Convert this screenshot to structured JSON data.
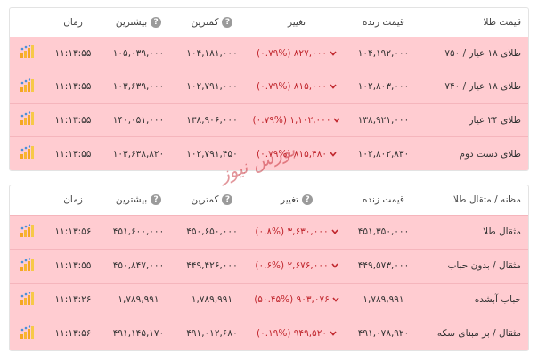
{
  "tables": [
    {
      "header": [
        "قیمت طلا",
        "قیمت زنده",
        "تغییر",
        "کمترین",
        "بیشترین",
        "زمان"
      ],
      "rows": [
        {
          "name": "طلای ۱۸ عیار / ۷۵۰",
          "live": "۱۰۴,۱۹۲,۰۰۰",
          "change": "۸۲۷,۰۰۰",
          "percent": "(۰.۷۹%)",
          "low": "۱۰۴,۱۸۱,۰۰۰",
          "high": "۱۰۵,۰۳۹,۰۰۰",
          "time": "۱۱:۱۳:۵۵"
        },
        {
          "name": "طلای ۱۸ عیار / ۷۴۰",
          "live": "۱۰۲,۸۰۳,۰۰۰",
          "change": "۸۱۵,۰۰۰",
          "percent": "(۰.۷۹%)",
          "low": "۱۰۲,۷۹۱,۰۰۰",
          "high": "۱۰۳,۶۳۹,۰۰۰",
          "time": "۱۱:۱۳:۵۵"
        },
        {
          "name": "طلای ۲۴ عیار",
          "live": "۱۳۸,۹۲۱,۰۰۰",
          "change": "۱,۱۰۲,۰۰۰",
          "percent": "(۰.۷۹%)",
          "low": "۱۳۸,۹۰۶,۰۰۰",
          "high": "۱۴۰,۰۵۱,۰۰۰",
          "time": "۱۱:۱۳:۵۵"
        },
        {
          "name": "طلای دست دوم",
          "live": "۱۰۲,۸۰۲,۸۳۰",
          "change": "۸۱۵,۴۸۰",
          "percent": "(۰.۷۹%)",
          "low": "۱۰۲,۷۹۱,۴۵۰",
          "high": "۱۰۳,۶۳۸,۸۲۰",
          "time": "۱۱:۱۳:۵۵"
        }
      ]
    },
    {
      "header": [
        "مظنه / مثقال طلا",
        "قیمت زنده",
        "تغییر",
        "کمترین",
        "بیشترین",
        "زمان"
      ],
      "rows": [
        {
          "name": "مثقال طلا",
          "live": "۴۵۱,۳۵۰,۰۰۰",
          "change": "۳,۶۳۰,۰۰۰",
          "percent": "(۰.۸%)",
          "low": "۴۵۰,۶۵۰,۰۰۰",
          "high": "۴۵۱,۶۰۰,۰۰۰",
          "time": "۱۱:۱۳:۵۶"
        },
        {
          "name": "مثقال / بدون حباب",
          "live": "۴۴۹,۵۷۳,۰۰۰",
          "change": "۲,۶۷۶,۰۰۰",
          "percent": "(۰.۶%)",
          "low": "۴۴۹,۴۲۶,۰۰۰",
          "high": "۴۵۰,۸۴۷,۰۰۰",
          "time": "۱۱:۱۳:۵۵"
        },
        {
          "name": "حباب آبشده",
          "live": "۱,۷۸۹,۹۹۱",
          "change": "۹۰۳,۰۷۶",
          "percent": "(۵۰.۴۵%)",
          "low": "۱,۷۸۹,۹۹۱",
          "high": "۱,۷۸۹,۹۹۱",
          "time": "۱۱:۱۳:۲۶"
        },
        {
          "name": "مثقال / بر مبنای سکه",
          "live": "۴۹۱,۰۷۸,۹۲۰",
          "change": "۹۴۹,۵۲۰",
          "percent": "(۰.۱۹%)",
          "low": "۴۹۱,۰۱۲,۶۸۰",
          "high": "۴۹۱,۱۴۵,۱۷۰",
          "time": "۱۱:۱۳:۵۶"
        }
      ]
    }
  ],
  "watermark": "بورس نیوز"
}
